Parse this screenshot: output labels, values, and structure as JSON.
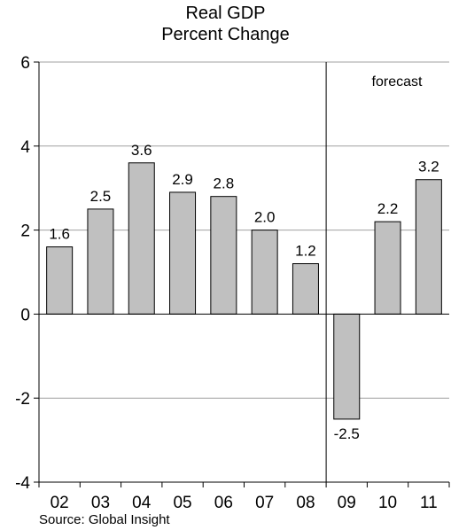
{
  "title_line1": "Real GDP",
  "title_line2": "Percent Change",
  "source": "Source: Global Insight",
  "colors": {
    "bar_fill": "#c0c0c0",
    "bar_stroke": "#000000",
    "gridline": "#a0a0a0"
  },
  "chart_data": {
    "type": "bar",
    "title": "Real GDP Percent Change",
    "categories": [
      "02",
      "03",
      "04",
      "05",
      "06",
      "07",
      "08",
      "09",
      "10",
      "11"
    ],
    "values": [
      1.6,
      2.5,
      3.6,
      2.9,
      2.8,
      2.0,
      1.2,
      -2.5,
      2.2,
      3.2
    ],
    "data_labels": [
      "1.6",
      "2.5",
      "3.6",
      "2.9",
      "2.8",
      "2.0",
      "1.2",
      "-2.5",
      "2.2",
      "3.2"
    ],
    "ylim": [
      -4,
      6
    ],
    "yticks": [
      -4,
      -2,
      0,
      2,
      4,
      6
    ],
    "ytick_labels": [
      "-4",
      "-2",
      "0",
      "2",
      "4",
      "6"
    ],
    "grid": true,
    "annotation": "forecast",
    "forecast_start_category": "09",
    "xlabel": "",
    "ylabel": ""
  }
}
